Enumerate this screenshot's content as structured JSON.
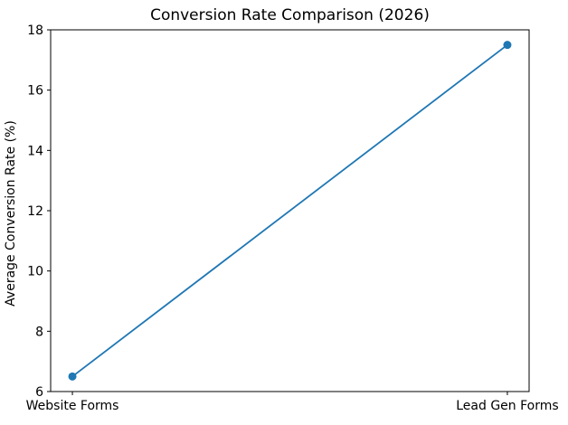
{
  "chart_data": {
    "type": "line",
    "title": "Conversion Rate Comparison (2026)",
    "categories": [
      "Website Forms",
      "Lead Gen Forms"
    ],
    "series": [
      {
        "name": "Average Conversion Rate",
        "values": [
          6.5,
          17.5
        ]
      }
    ],
    "xlabel": "",
    "ylabel": "Average Conversion Rate (%)",
    "ylim": [
      6,
      18
    ],
    "yticks": [
      6,
      8,
      10,
      12,
      14,
      16,
      18
    ],
    "grid": false,
    "legend": "none",
    "line_color": "#1f77b4",
    "marker": "circle",
    "marker_radius": 4.5,
    "line_width": 1.8,
    "spine_color": "#000000",
    "background": "#ffffff"
  }
}
